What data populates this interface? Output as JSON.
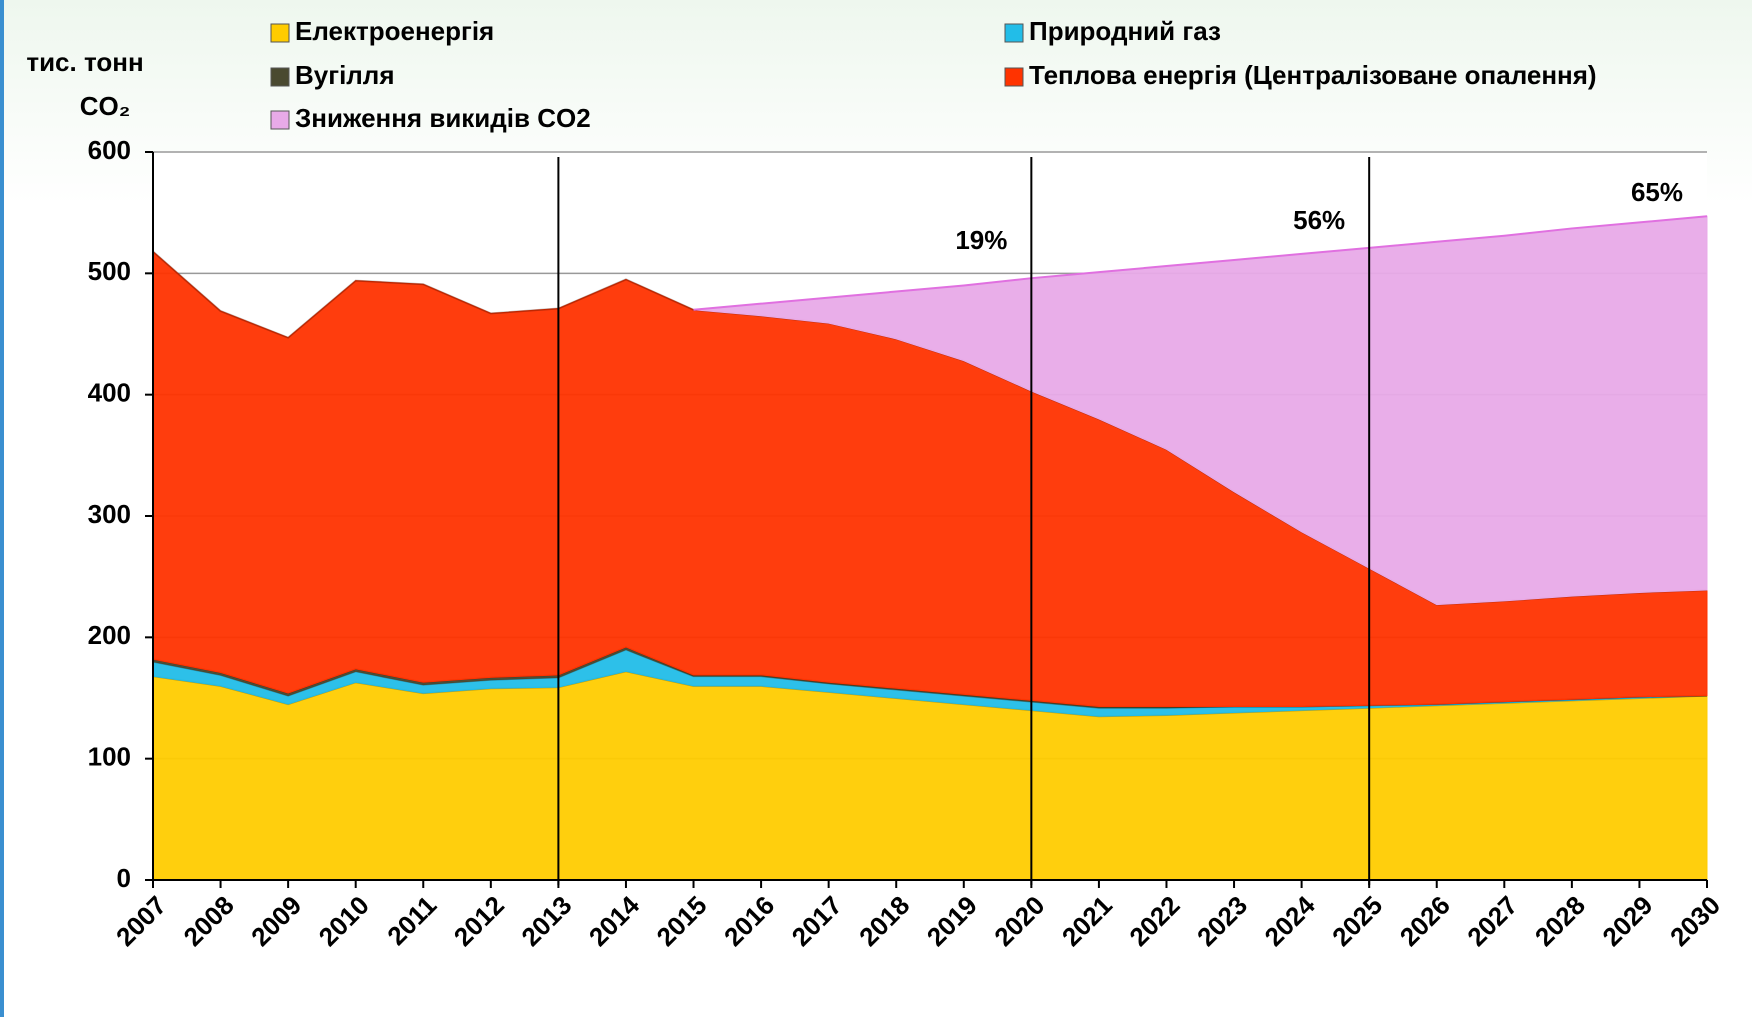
{
  "chart_data": {
    "type": "stacked-area",
    "y_label": [
      "тис. тонн",
      "CO₂"
    ],
    "categories": [
      "2007",
      "2008",
      "2009",
      "2010",
      "2011",
      "2012",
      "2013",
      "2014",
      "2015",
      "2016",
      "2017",
      "2018",
      "2019",
      "2020",
      "2021",
      "2022",
      "2023",
      "2024",
      "2025",
      "2026",
      "2027",
      "2028",
      "2029",
      "2030"
    ],
    "series": [
      {
        "name": "Електроенергія",
        "color": "#ffcc00",
        "values": [
          168,
          160,
          145,
          163,
          154,
          158,
          159,
          172,
          160,
          160,
          155,
          150,
          145,
          140,
          135,
          136,
          138,
          140,
          142,
          144,
          146,
          148,
          150,
          152
        ]
      },
      {
        "name": "Природний газ",
        "color": "#22bde8",
        "values": [
          12,
          9,
          7,
          9,
          7,
          7,
          8,
          18,
          8,
          8,
          7,
          7,
          7,
          7,
          7,
          6,
          5,
          3,
          2,
          1,
          1,
          1,
          1,
          0
        ]
      },
      {
        "name": "Вугілля",
        "color": "#4a4a30",
        "values": [
          2,
          2,
          2,
          2,
          2,
          2,
          2,
          2,
          1,
          1,
          1,
          1,
          1,
          1,
          1,
          1,
          0,
          0,
          0,
          0,
          0,
          0,
          0,
          0
        ]
      },
      {
        "name": "Теплова енергія (Централізоване опалення)",
        "color": "#ff3300",
        "values": [
          336,
          298,
          293,
          320,
          328,
          300,
          302,
          303,
          301,
          296,
          296,
          288,
          275,
          255,
          237,
          212,
          177,
          144,
          113,
          82,
          83,
          85,
          86,
          87
        ]
      },
      {
        "name": "Зниження викидів CO2",
        "color": "#e8aae8",
        "values": [
          null,
          null,
          null,
          null,
          null,
          null,
          null,
          null,
          0,
          10,
          21,
          39,
          62,
          93,
          121,
          151,
          191,
          229,
          264,
          299,
          301,
          303,
          305,
          308
        ]
      }
    ],
    "ylim": [
      0,
      600
    ],
    "yticks": [
      0,
      100,
      200,
      300,
      400,
      500,
      600
    ],
    "grid": true,
    "vertical_lines": [
      "2013",
      "2020",
      "2025"
    ],
    "annotations": [
      {
        "text": "19%",
        "x": "2020"
      },
      {
        "text": "56%",
        "x": "2025"
      },
      {
        "text": "65%",
        "x": "2030"
      }
    ]
  }
}
